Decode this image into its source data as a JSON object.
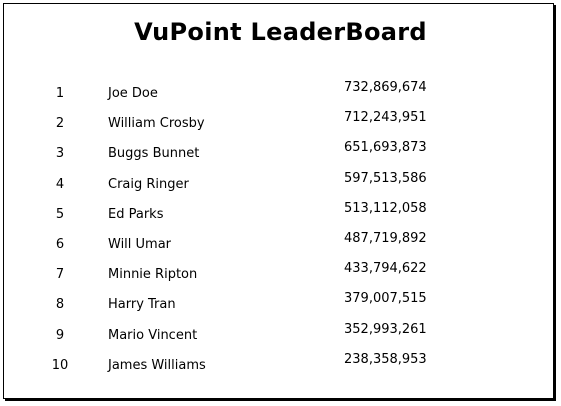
{
  "title": "VuPoint LeaderBoard",
  "leaderboard": [
    {
      "rank": "1",
      "name": "Joe Doe",
      "score": "732,869,674"
    },
    {
      "rank": "2",
      "name": "William Crosby",
      "score": "712,243,951"
    },
    {
      "rank": "3",
      "name": "Buggs Bunnet",
      "score": "651,693,873"
    },
    {
      "rank": "4",
      "name": "Craig Ringer",
      "score": "597,513,586"
    },
    {
      "rank": "5",
      "name": "Ed Parks",
      "score": "513,112,058"
    },
    {
      "rank": "6",
      "name": "Will Umar",
      "score": "487,719,892"
    },
    {
      "rank": "7",
      "name": "Minnie Ripton",
      "score": "433,794,622"
    },
    {
      "rank": "8",
      "name": "Harry Tran",
      "score": "379,007,515"
    },
    {
      "rank": "9",
      "name": "Mario Vincent",
      "score": "352,993,261"
    },
    {
      "rank": "10",
      "name": "James Williams",
      "score": "238,358,953"
    }
  ]
}
